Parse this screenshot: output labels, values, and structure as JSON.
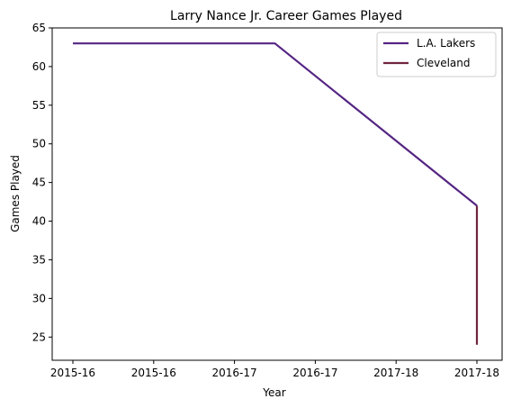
{
  "chart_data": {
    "type": "line",
    "title": "Larry Nance Jr. Career Games Played",
    "xlabel": "Year",
    "ylabel": "Games Played",
    "x_range": [
      0,
      5
    ],
    "ylim": [
      22,
      65
    ],
    "x_ticks": [
      {
        "value": 0,
        "label": "2015-16"
      },
      {
        "value": 1,
        "label": "2015-16"
      },
      {
        "value": 2,
        "label": "2016-17"
      },
      {
        "value": 3,
        "label": "2016-17"
      },
      {
        "value": 4,
        "label": "2017-18"
      },
      {
        "value": 5,
        "label": "2017-18"
      }
    ],
    "y_ticks": [
      25,
      30,
      35,
      40,
      45,
      50,
      55,
      60,
      65
    ],
    "legend_position": "top-right",
    "grid": false,
    "series": [
      {
        "name": "L.A. Lakers",
        "color": "#552583",
        "points": [
          [
            0,
            63
          ],
          [
            2.5,
            63
          ],
          [
            5,
            42
          ]
        ]
      },
      {
        "name": "Cleveland",
        "color": "#6f263d",
        "points": [
          [
            5,
            42
          ],
          [
            5,
            24
          ]
        ]
      }
    ]
  }
}
